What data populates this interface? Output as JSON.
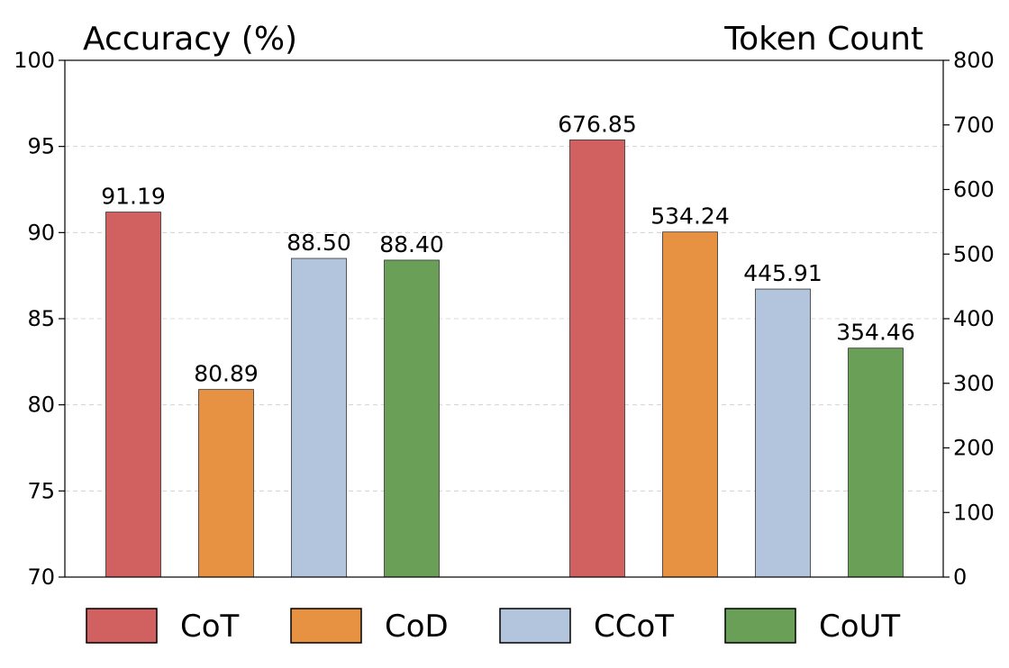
{
  "chart_data": {
    "type": "bar",
    "left_title": "Accuracy (%)",
    "right_title": "Token Count",
    "left_axis": {
      "range": [
        70,
        100
      ],
      "ticks": [
        "70",
        "75",
        "80",
        "85",
        "90",
        "95",
        "100"
      ]
    },
    "right_axis": {
      "range": [
        0,
        800
      ],
      "ticks": [
        "0",
        "100",
        "200",
        "300",
        "400",
        "500",
        "600",
        "700",
        "800"
      ]
    },
    "grid": "horizontal dashed",
    "legend_position": "bottom",
    "series": [
      {
        "name": "CoT",
        "color": "#d16060",
        "accuracy": 91.19,
        "accuracy_label": "91.19",
        "tokens": 676.85,
        "tokens_label": "676.85"
      },
      {
        "name": "CoD",
        "color": "#e69242",
        "accuracy": 80.89,
        "accuracy_label": "80.89",
        "tokens": 534.24,
        "tokens_label": "534.24"
      },
      {
        "name": "CCoT",
        "color": "#b3c4dd",
        "accuracy": 88.5,
        "accuracy_label": "88.50",
        "tokens": 445.91,
        "tokens_label": "445.91"
      },
      {
        "name": "CoUT",
        "color": "#6a9f58",
        "accuracy": 88.4,
        "accuracy_label": "88.40",
        "tokens": 354.46,
        "tokens_label": "354.46"
      }
    ]
  }
}
